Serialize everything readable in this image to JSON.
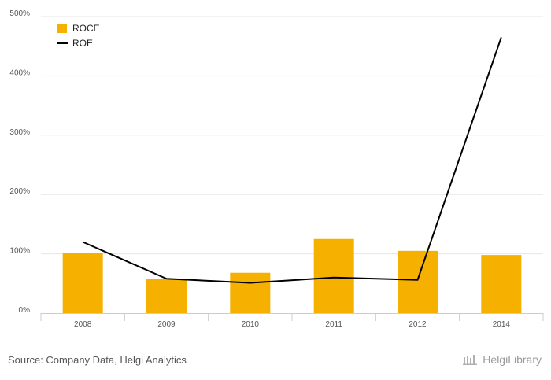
{
  "chart_data": {
    "type": "bar",
    "categories": [
      "2008",
      "2009",
      "2010",
      "2011",
      "2012",
      "2014"
    ],
    "series": [
      {
        "name": "ROCE",
        "type": "bar",
        "values": [
          102,
          57,
          68,
          125,
          105,
          98
        ]
      },
      {
        "name": "ROE",
        "type": "line",
        "values": [
          120,
          58,
          51,
          60,
          56,
          465
        ]
      }
    ],
    "yticks": [
      "0%",
      "100%",
      "200%",
      "300%",
      "400%",
      "500%"
    ],
    "ylim": [
      0,
      500
    ],
    "grid": true,
    "legend": "top-left",
    "colors": {
      "ROCE": "#f5b000",
      "ROE": "#000000",
      "grid": "#e6e6e6",
      "axis": "#cccccc"
    }
  },
  "footer": {
    "source": "Source: Company Data, Helgi Analytics",
    "brand": "HelgiLibrary"
  }
}
